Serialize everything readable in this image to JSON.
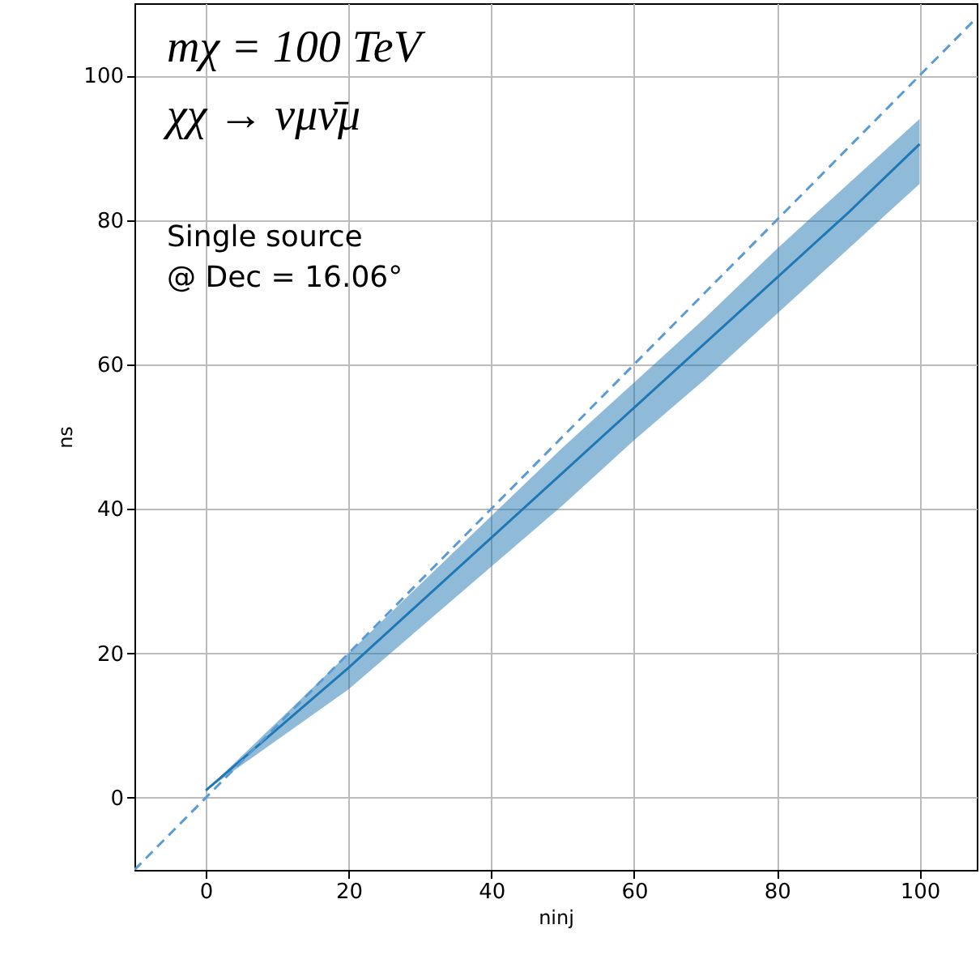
{
  "chart_data": {
    "type": "line",
    "xlabel": "ninj",
    "ylabel": "ns",
    "annotations": [
      "mχ = 100 TeV",
      "χχ → νμν̄μ",
      "Single source",
      " @ Dec = 16.06°"
    ],
    "x": [
      0,
      10,
      20,
      30,
      40,
      50,
      60,
      70,
      80,
      90,
      100
    ],
    "series": [
      {
        "color": "#1f77b4",
        "values": [
          1,
          9.5,
          18,
          27,
          36,
          45,
          54,
          63,
          72,
          81,
          90.5
        ],
        "lower": [
          1,
          8,
          15,
          23.5,
          32,
          40.5,
          49.5,
          58,
          67,
          76,
          85
        ],
        "upper": [
          1,
          10.5,
          20,
          29.5,
          39,
          48.5,
          57.5,
          66.5,
          76,
          85,
          94
        ]
      },
      {
        "type": "line",
        "color": "#5b9bd5",
        "line_style": "dashed",
        "x": [
          -10,
          108
        ],
        "values": [
          -10,
          108
        ]
      }
    ],
    "xlim": [
      -10,
      108
    ],
    "ylim": [
      -10,
      110
    ],
    "xticks": [
      0,
      20,
      40,
      60,
      80,
      100
    ],
    "yticks": [
      0,
      20,
      40,
      60,
      80,
      100
    ],
    "grid": true
  }
}
